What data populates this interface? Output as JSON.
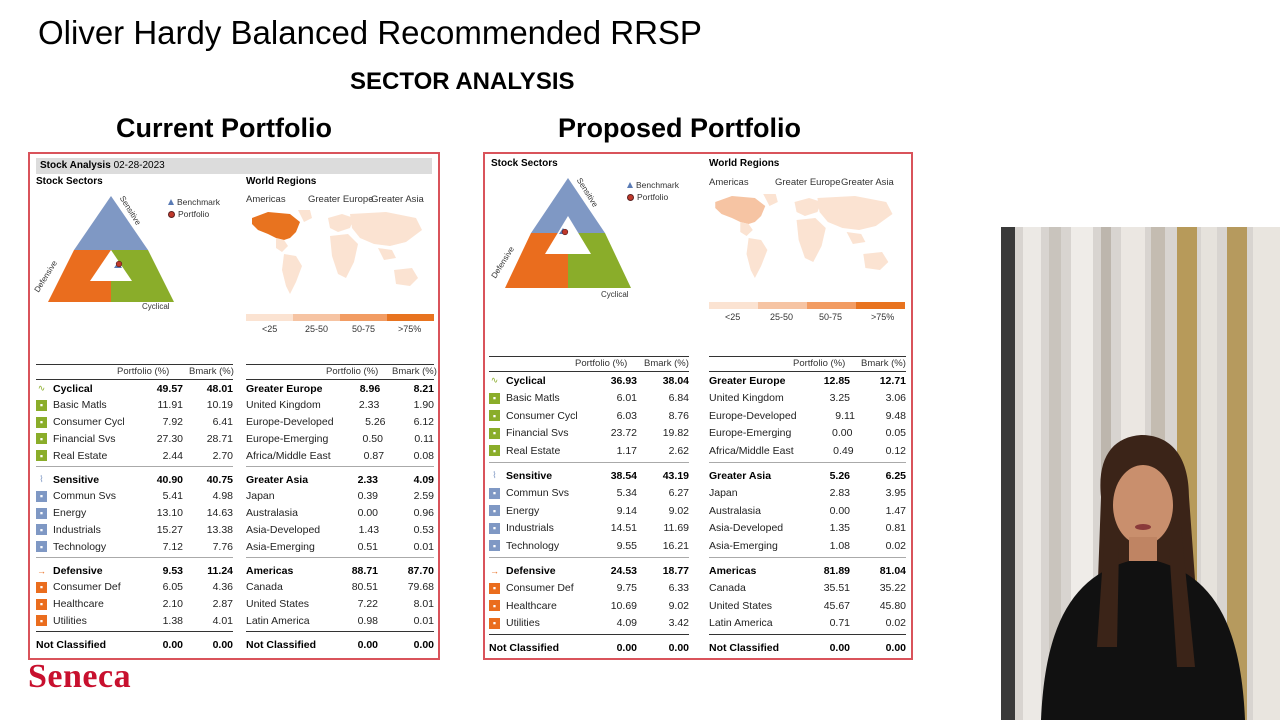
{
  "title": "Oliver Hardy Balanced Recommended RRSP",
  "subtitle": "SECTOR ANALYSIS",
  "brand": {
    "name": "Seneca",
    "color": "#c8102e"
  },
  "colors": {
    "sensitive": "#7f98c4",
    "defensive": "#ea6d1e",
    "cyclical": "#8aad2a",
    "panel_border": "#d9535b",
    "map_low": "#fbe3d2",
    "map_mid1": "#f6c4a3",
    "map_mid2": "#f29c63",
    "map_high": "#e8731f"
  },
  "current": {
    "heading": "Current Portfolio",
    "date_label": "Stock Analysis",
    "date": "02-28-2023",
    "sectors_label": "Stock Sectors",
    "regions_label": "World Regions",
    "legend": {
      "benchmark": "Benchmark",
      "portfolio": "Portfolio"
    },
    "tri_labels": {
      "sensitive": "Sensitive",
      "defensive": "Defensive",
      "cyclical": "Cyclical"
    },
    "region_heads": {
      "americas": "Americas",
      "europe": "Greater Europe",
      "asia": "Greater Asia"
    },
    "scale": [
      "<25",
      "25-50",
      "50-75",
      ">75%"
    ],
    "col_portfolio": "Portfolio (%)",
    "col_bmark": "Bmark (%)",
    "sectors": [
      {
        "name": "Cyclical",
        "p": "49.57",
        "b": "48.01",
        "group": true,
        "icon": "cyclical-icon"
      },
      {
        "name": "Basic Matls",
        "p": "11.91",
        "b": "10.19",
        "icon": "basic-materials-icon"
      },
      {
        "name": "Consumer Cycl",
        "p": "7.92",
        "b": "6.41",
        "icon": "consumer-cyclical-icon"
      },
      {
        "name": "Financial Svs",
        "p": "27.30",
        "b": "28.71",
        "icon": "financial-services-icon"
      },
      {
        "name": "Real Estate",
        "p": "2.44",
        "b": "2.70",
        "icon": "real-estate-icon"
      },
      {
        "name": "Sensitive",
        "p": "40.90",
        "b": "40.75",
        "group": true,
        "icon": "sensitive-icon"
      },
      {
        "name": "Commun Svs",
        "p": "5.41",
        "b": "4.98",
        "icon": "communication-services-icon"
      },
      {
        "name": "Energy",
        "p": "13.10",
        "b": "14.63",
        "icon": "energy-icon"
      },
      {
        "name": "Industrials",
        "p": "15.27",
        "b": "13.38",
        "icon": "industrials-icon"
      },
      {
        "name": "Technology",
        "p": "7.12",
        "b": "7.76",
        "icon": "technology-icon"
      },
      {
        "name": "Defensive",
        "p": "9.53",
        "b": "11.24",
        "group": true,
        "icon": "defensive-icon"
      },
      {
        "name": "Consumer Def",
        "p": "6.05",
        "b": "4.36",
        "icon": "consumer-defensive-icon"
      },
      {
        "name": "Healthcare",
        "p": "2.10",
        "b": "2.87",
        "icon": "healthcare-icon"
      },
      {
        "name": "Utilities",
        "p": "1.38",
        "b": "4.01",
        "icon": "utilities-icon"
      },
      {
        "name": "Not Classified",
        "p": "0.00",
        "b": "0.00",
        "group": true,
        "final": true
      }
    ],
    "regions": [
      {
        "name": "Greater Europe",
        "p": "8.96",
        "b": "8.21",
        "group": true
      },
      {
        "name": "United Kingdom",
        "p": "2.33",
        "b": "1.90"
      },
      {
        "name": "Europe-Developed",
        "p": "5.26",
        "b": "6.12"
      },
      {
        "name": "Europe-Emerging",
        "p": "0.50",
        "b": "0.11"
      },
      {
        "name": "Africa/Middle East",
        "p": "0.87",
        "b": "0.08"
      },
      {
        "name": "Greater Asia",
        "p": "2.33",
        "b": "4.09",
        "group": true
      },
      {
        "name": "Japan",
        "p": "0.39",
        "b": "2.59"
      },
      {
        "name": "Australasia",
        "p": "0.00",
        "b": "0.96"
      },
      {
        "name": "Asia-Developed",
        "p": "1.43",
        "b": "0.53"
      },
      {
        "name": "Asia-Emerging",
        "p": "0.51",
        "b": "0.01"
      },
      {
        "name": "Americas",
        "p": "88.71",
        "b": "87.70",
        "group": true
      },
      {
        "name": "Canada",
        "p": "80.51",
        "b": "79.68"
      },
      {
        "name": "United States",
        "p": "7.22",
        "b": "8.01"
      },
      {
        "name": "Latin America",
        "p": "0.98",
        "b": "0.01"
      },
      {
        "name": "Not Classified",
        "p": "0.00",
        "b": "0.00",
        "group": true,
        "final": true
      }
    ]
  },
  "proposed": {
    "heading": "Proposed Portfolio",
    "sectors_label": "Stock Sectors",
    "regions_label": "World Regions",
    "legend": {
      "benchmark": "Benchmark",
      "portfolio": "Portfolio"
    },
    "tri_labels": {
      "sensitive": "Sensitive",
      "defensive": "Defensive",
      "cyclical": "Cyclical"
    },
    "region_heads": {
      "americas": "Americas",
      "europe": "Greater Europe",
      "asia": "Greater Asia"
    },
    "scale": [
      "<25",
      "25-50",
      "50-75",
      ">75%"
    ],
    "col_portfolio": "Portfolio (%)",
    "col_bmark": "Bmark (%)",
    "sectors": [
      {
        "name": "Cyclical",
        "p": "36.93",
        "b": "38.04",
        "group": true,
        "icon": "cyclical-icon"
      },
      {
        "name": "Basic Matls",
        "p": "6.01",
        "b": "6.84",
        "icon": "basic-materials-icon"
      },
      {
        "name": "Consumer Cycl",
        "p": "6.03",
        "b": "8.76",
        "icon": "consumer-cyclical-icon"
      },
      {
        "name": "Financial Svs",
        "p": "23.72",
        "b": "19.82",
        "icon": "financial-services-icon"
      },
      {
        "name": "Real Estate",
        "p": "1.17",
        "b": "2.62",
        "icon": "real-estate-icon"
      },
      {
        "name": "Sensitive",
        "p": "38.54",
        "b": "43.19",
        "group": true,
        "icon": "sensitive-icon"
      },
      {
        "name": "Commun Svs",
        "p": "5.34",
        "b": "6.27",
        "icon": "communication-services-icon"
      },
      {
        "name": "Energy",
        "p": "9.14",
        "b": "9.02",
        "icon": "energy-icon"
      },
      {
        "name": "Industrials",
        "p": "14.51",
        "b": "11.69",
        "icon": "industrials-icon"
      },
      {
        "name": "Technology",
        "p": "9.55",
        "b": "16.21",
        "icon": "technology-icon"
      },
      {
        "name": "Defensive",
        "p": "24.53",
        "b": "18.77",
        "group": true,
        "icon": "defensive-icon"
      },
      {
        "name": "Consumer Def",
        "p": "9.75",
        "b": "6.33",
        "icon": "consumer-defensive-icon"
      },
      {
        "name": "Healthcare",
        "p": "10.69",
        "b": "9.02",
        "icon": "healthcare-icon"
      },
      {
        "name": "Utilities",
        "p": "4.09",
        "b": "3.42",
        "icon": "utilities-icon"
      },
      {
        "name": "Not Classified",
        "p": "0.00",
        "b": "0.00",
        "group": true,
        "final": true
      }
    ],
    "regions": [
      {
        "name": "Greater Europe",
        "p": "12.85",
        "b": "12.71",
        "group": true
      },
      {
        "name": "United Kingdom",
        "p": "3.25",
        "b": "3.06"
      },
      {
        "name": "Europe-Developed",
        "p": "9.11",
        "b": "9.48"
      },
      {
        "name": "Europe-Emerging",
        "p": "0.00",
        "b": "0.05"
      },
      {
        "name": "Africa/Middle East",
        "p": "0.49",
        "b": "0.12"
      },
      {
        "name": "Greater Asia",
        "p": "5.26",
        "b": "6.25",
        "group": true
      },
      {
        "name": "Japan",
        "p": "2.83",
        "b": "3.95"
      },
      {
        "name": "Australasia",
        "p": "0.00",
        "b": "1.47"
      },
      {
        "name": "Asia-Developed",
        "p": "1.35",
        "b": "0.81"
      },
      {
        "name": "Asia-Emerging",
        "p": "1.08",
        "b": "0.02"
      },
      {
        "name": "Americas",
        "p": "81.89",
        "b": "81.04",
        "group": true
      },
      {
        "name": "Canada",
        "p": "35.51",
        "b": "35.22"
      },
      {
        "name": "United States",
        "p": "45.67",
        "b": "45.80"
      },
      {
        "name": "Latin America",
        "p": "0.71",
        "b": "0.02"
      },
      {
        "name": "Not Classified",
        "p": "0.00",
        "b": "0.00",
        "group": true,
        "final": true
      }
    ]
  }
}
